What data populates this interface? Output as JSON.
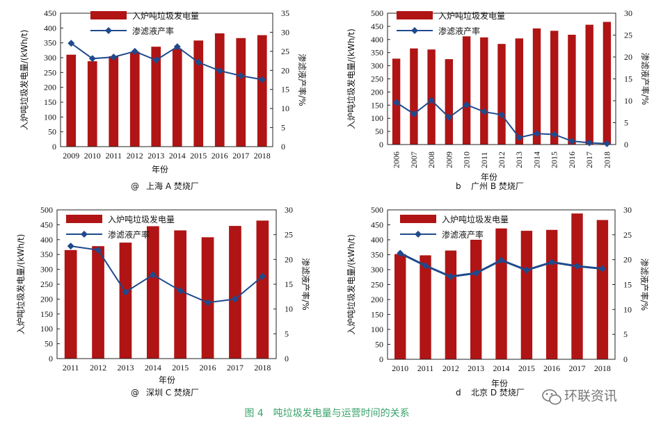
{
  "colors": {
    "bar": "#b01414",
    "line": "#1f4a8c",
    "caption": "#3aa36a"
  },
  "caption": "图 4　吨垃圾发电量与运营时间的关系",
  "watermark": "环联资讯",
  "chart_data": [
    {
      "type": "bar",
      "title": "上海 A 焚烧厂",
      "panel_mark": "@",
      "xlabel": "年份",
      "ylabel": "入炉吨垃圾发电量/(kWh/t)",
      "y2label": "渗滤液产率/%",
      "categories": [
        "2009",
        "2010",
        "2011",
        "2012",
        "2013",
        "2014",
        "2015",
        "2016",
        "2017",
        "2018"
      ],
      "ylim": [
        0,
        450
      ],
      "y2lim": [
        0,
        35
      ],
      "yticks": [
        0,
        50,
        100,
        150,
        200,
        250,
        300,
        350,
        400,
        450
      ],
      "y2ticks": [
        0,
        5,
        10,
        15,
        20,
        25,
        30,
        35
      ],
      "rotate_labels": false,
      "series": [
        {
          "name": "入炉吨垃圾发电量",
          "kind": "bar",
          "values": [
            310,
            288,
            305,
            320,
            337,
            330,
            358,
            382,
            366,
            376
          ]
        },
        {
          "name": "渗滤液产率",
          "kind": "line",
          "axis": "right",
          "values": [
            27.1,
            23.1,
            23.5,
            25.0,
            22.7,
            26.2,
            22.1,
            19.9,
            18.6,
            17.6
          ]
        }
      ]
    },
    {
      "type": "bar",
      "title": "广州 B 焚烧厂",
      "panel_mark": "b",
      "xlabel": "年份",
      "ylabel": "入炉吨垃圾发电量/(kWh/t)",
      "y2label": "渗滤液产率/%",
      "categories": [
        "2006",
        "2007",
        "2008",
        "2009",
        "2010",
        "2011",
        "2012",
        "2013",
        "2014",
        "2015",
        "2016",
        "2017",
        "2018"
      ],
      "ylim": [
        0,
        500
      ],
      "y2lim": [
        0,
        30
      ],
      "yticks": [
        0,
        50,
        100,
        150,
        200,
        250,
        300,
        350,
        400,
        450,
        500
      ],
      "y2ticks": [
        0,
        5,
        10,
        15,
        20,
        25,
        30
      ],
      "rotate_labels": true,
      "series": [
        {
          "name": "入炉吨垃圾发电量",
          "kind": "bar",
          "values": [
            327,
            366,
            362,
            325,
            412,
            408,
            383,
            404,
            442,
            433,
            418,
            456,
            467
          ]
        },
        {
          "name": "渗滤液产率",
          "kind": "line",
          "axis": "right",
          "values": [
            9.6,
            7.0,
            10.1,
            6.2,
            9.1,
            7.5,
            6.8,
            1.6,
            2.5,
            2.3,
            0.8,
            0.4,
            0.2
          ]
        }
      ]
    },
    {
      "type": "bar",
      "title": "深圳 C 焚烧厂",
      "panel_mark": "@",
      "xlabel": "年份",
      "ylabel": "入炉吨垃圾发电量/(kWh/t)",
      "y2label": "渗滤液产率/%",
      "categories": [
        "2011",
        "2012",
        "2013",
        "2014",
        "2015",
        "2016",
        "2017",
        "2018"
      ],
      "ylim": [
        0,
        500
      ],
      "y2lim": [
        0,
        30
      ],
      "yticks": [
        0,
        50,
        100,
        150,
        200,
        250,
        300,
        350,
        400,
        450,
        500
      ],
      "y2ticks": [
        0,
        5,
        10,
        15,
        20,
        25,
        30
      ],
      "rotate_labels": false,
      "series": [
        {
          "name": "入炉吨垃圾发电量",
          "kind": "bar",
          "values": [
            365,
            378,
            390,
            445,
            431,
            408,
            446,
            464
          ]
        },
        {
          "name": "渗滤液产率",
          "kind": "line",
          "axis": "right",
          "values": [
            22.7,
            21.9,
            13.4,
            16.9,
            13.7,
            11.3,
            12.0,
            16.6
          ]
        }
      ]
    },
    {
      "type": "bar",
      "title": "北京 D 焚烧厂",
      "panel_mark": "d",
      "xlabel": "年份",
      "ylabel": "入炉吨垃圾发电量/(kWh/t)",
      "y2label": "渗滤液产率/%",
      "categories": [
        "2010",
        "2011",
        "2012",
        "2013",
        "2014",
        "2015",
        "2016",
        "2017",
        "2018"
      ],
      "ylim": [
        0,
        500
      ],
      "y2lim": [
        0,
        30
      ],
      "yticks": [
        0,
        50,
        100,
        150,
        200,
        250,
        300,
        350,
        400,
        450,
        500
      ],
      "y2ticks": [
        0,
        5,
        10,
        15,
        20,
        25,
        30
      ],
      "rotate_labels": false,
      "series": [
        {
          "name": "入炉吨垃圾发电量",
          "kind": "bar",
          "values": [
            352,
            348,
            364,
            400,
            438,
            430,
            433,
            488,
            466
          ]
        },
        {
          "name": "渗滤液产率",
          "kind": "line",
          "axis": "right",
          "values": [
            21.3,
            18.8,
            16.6,
            17.3,
            19.9,
            17.9,
            19.5,
            18.7,
            18.2
          ]
        }
      ]
    }
  ]
}
